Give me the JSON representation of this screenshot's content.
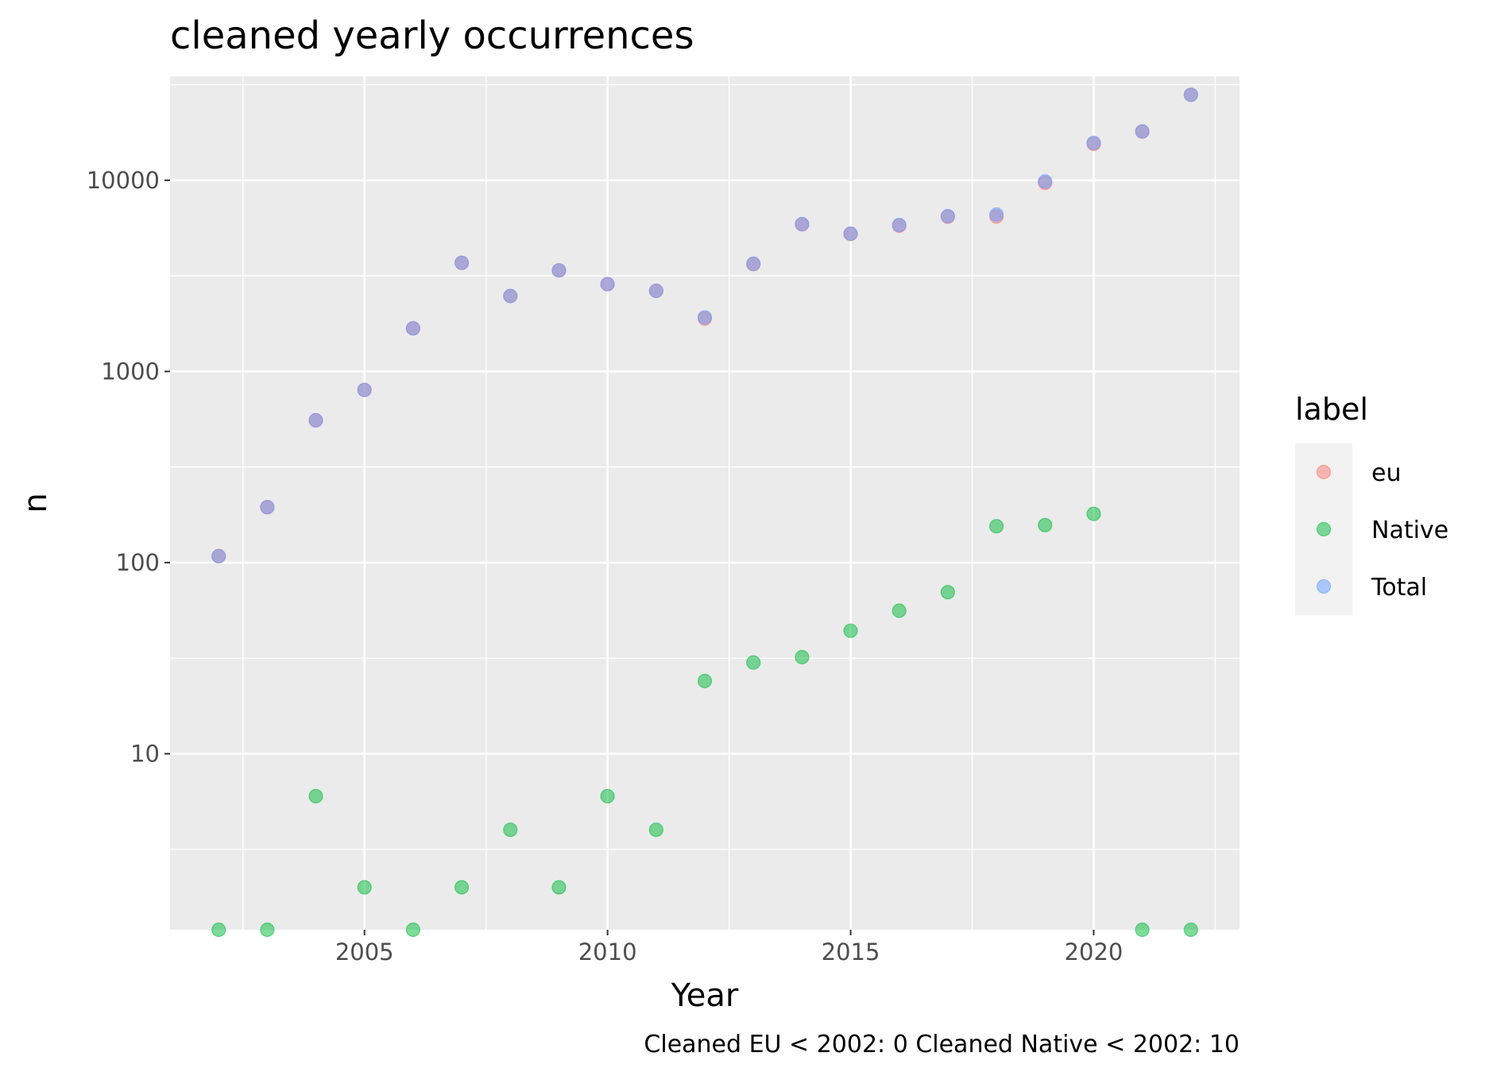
{
  "chart_data": {
    "type": "scatter",
    "title": "cleaned yearly occurrences",
    "xlabel": "Year",
    "ylabel": "n",
    "yscale": "log10",
    "xlim": [
      2001.0,
      2023.0
    ],
    "ylim": [
      1.2,
      35000
    ],
    "x_ticks": [
      2005,
      2010,
      2015,
      2020
    ],
    "x_tick_labels": [
      "2005",
      "2010",
      "2015",
      "2020"
    ],
    "y_ticks": [
      10,
      100,
      1000,
      10000
    ],
    "y_tick_labels": [
      "10",
      "100",
      "1000",
      "10000"
    ],
    "grid": true,
    "legend": {
      "title": "label",
      "placement": "right",
      "entries": [
        "eu",
        "Native",
        "Total"
      ]
    },
    "caption": "Cleaned EU < 2002: 0 Cleaned Native < 2002: 10",
    "series": [
      {
        "name": "eu",
        "color": "#F8766D",
        "x": [
          2002,
          2003,
          2004,
          2005,
          2006,
          2007,
          2008,
          2009,
          2010,
          2011,
          2012,
          2013,
          2014,
          2015,
          2016,
          2017,
          2018,
          2019,
          2020,
          2021,
          2022
        ],
        "values": [
          108,
          195,
          555,
          800,
          1680,
          3700,
          2480,
          3380,
          2860,
          2640,
          1890,
          3640,
          5880,
          5240,
          5780,
          6440,
          6460,
          9700,
          15500,
          18000,
          28000
        ]
      },
      {
        "name": "Native",
        "color": "#00BA38",
        "x": [
          2002,
          2003,
          2004,
          2005,
          2006,
          2007,
          2008,
          2009,
          2010,
          2011,
          2012,
          2013,
          2014,
          2015,
          2016,
          2017,
          2018,
          2019,
          2020,
          2021,
          2022
        ],
        "values": [
          1.2,
          1.2,
          6,
          2,
          1.2,
          2,
          4,
          2,
          6,
          4,
          24,
          30,
          32,
          44,
          56,
          70,
          155,
          157,
          180,
          1.2,
          1.2
        ]
      },
      {
        "name": "Total",
        "color": "#619CFF",
        "x": [
          2002,
          2003,
          2004,
          2005,
          2006,
          2007,
          2008,
          2009,
          2010,
          2011,
          2012,
          2013,
          2014,
          2015,
          2016,
          2017,
          2018,
          2019,
          2020,
          2021,
          2022
        ],
        "values": [
          108,
          195,
          555,
          800,
          1680,
          3700,
          2480,
          3380,
          2860,
          2640,
          1920,
          3660,
          5900,
          5260,
          5840,
          6500,
          6620,
          9860,
          15700,
          18000,
          28000
        ]
      }
    ]
  },
  "colors": {
    "panel_background": "#EBEBEB",
    "grid_major": "#FFFFFF",
    "legend_key_background": "#F2F2F2"
  }
}
